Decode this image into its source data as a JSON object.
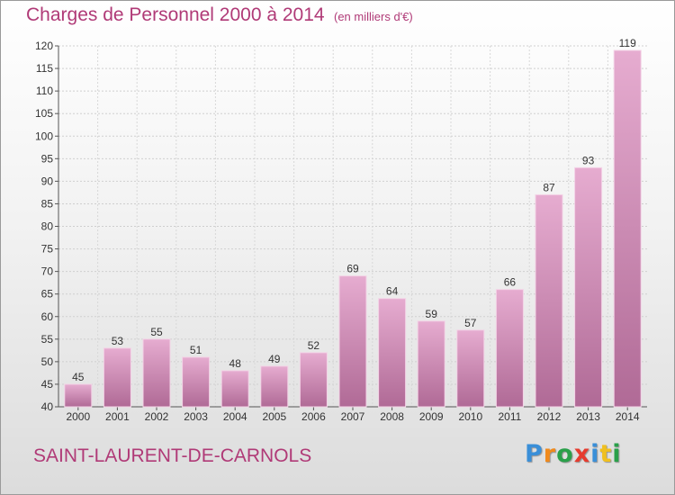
{
  "chart_data": {
    "type": "bar",
    "title": "Charges de Personnel 2000 à 2014",
    "subtitle": "(en milliers d'€)",
    "categories": [
      "2000",
      "2001",
      "2002",
      "2003",
      "2004",
      "2005",
      "2006",
      "2007",
      "2008",
      "2009",
      "2010",
      "2011",
      "2012",
      "2013",
      "2014"
    ],
    "values": [
      45,
      53,
      55,
      51,
      48,
      49,
      52,
      69,
      64,
      59,
      57,
      66,
      87,
      93,
      119
    ],
    "ylim": [
      40,
      120
    ],
    "yticks": [
      40,
      45,
      50,
      55,
      60,
      65,
      70,
      75,
      80,
      85,
      90,
      95,
      100,
      105,
      110,
      115,
      120
    ],
    "grid": true,
    "bar_color": "#d9a0c4"
  },
  "commune": "SAINT-LAURENT-DE-CARNOLS",
  "logo": {
    "text": "Proxiti",
    "letter_colors": [
      "#3a8fd8",
      "#f08a1c",
      "#2aa04a",
      "#e63b2e",
      "#3a8fd8",
      "#f0c020",
      "#2aa04a"
    ]
  }
}
